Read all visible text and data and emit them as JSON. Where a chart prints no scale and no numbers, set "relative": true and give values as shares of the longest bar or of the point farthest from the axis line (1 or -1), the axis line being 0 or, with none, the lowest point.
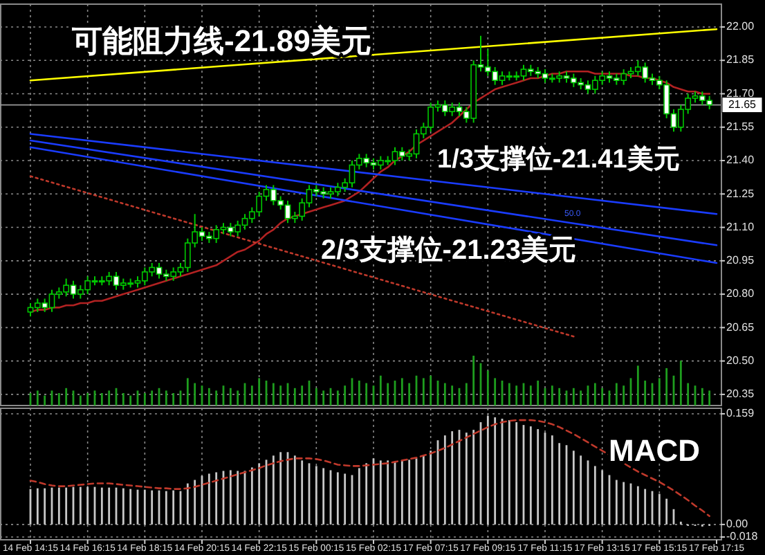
{
  "chart_data": [
    {
      "type": "candlestick",
      "color": "#00c800",
      "tick_labels": "y",
      "grid": true,
      "ohlc": [
        [
          20.72,
          20.76,
          20.7,
          20.74
        ],
        [
          20.74,
          20.78,
          20.72,
          20.76
        ],
        [
          20.76,
          20.78,
          20.72,
          20.74
        ],
        [
          20.74,
          20.82,
          20.72,
          20.8
        ],
        [
          20.8,
          20.83,
          20.78,
          20.81
        ],
        [
          20.81,
          20.87,
          20.79,
          20.84
        ],
        [
          20.84,
          20.86,
          20.78,
          20.8
        ],
        [
          20.8,
          20.84,
          20.78,
          20.82
        ],
        [
          20.82,
          20.88,
          20.8,
          20.86
        ],
        [
          20.86,
          20.88,
          20.84,
          20.86
        ],
        [
          20.86,
          20.88,
          20.84,
          20.86
        ],
        [
          20.86,
          20.9,
          20.84,
          20.88
        ],
        [
          20.88,
          20.9,
          20.82,
          20.84
        ],
        [
          20.84,
          20.87,
          20.82,
          20.85
        ],
        [
          20.85,
          20.87,
          20.83,
          20.85
        ],
        [
          20.85,
          20.88,
          20.83,
          20.86
        ],
        [
          20.86,
          20.92,
          20.84,
          20.9
        ],
        [
          20.9,
          20.94,
          20.88,
          20.92
        ],
        [
          20.92,
          20.94,
          20.87,
          20.89
        ],
        [
          20.89,
          20.91,
          20.86,
          20.88
        ],
        [
          20.88,
          20.92,
          20.86,
          20.9
        ],
        [
          20.9,
          20.94,
          20.88,
          20.92
        ],
        [
          20.92,
          21.05,
          20.9,
          21.03
        ],
        [
          21.03,
          21.16,
          21.01,
          21.08
        ],
        [
          21.08,
          21.1,
          21.04,
          21.06
        ],
        [
          21.06,
          21.08,
          21.03,
          21.05
        ],
        [
          21.05,
          21.11,
          21.03,
          21.09
        ],
        [
          21.09,
          21.12,
          21.07,
          21.1
        ],
        [
          21.1,
          21.12,
          21.06,
          21.08
        ],
        [
          21.08,
          21.13,
          21.06,
          21.11
        ],
        [
          21.11,
          21.16,
          21.09,
          21.14
        ],
        [
          21.14,
          21.19,
          21.12,
          21.17
        ],
        [
          21.17,
          21.26,
          21.15,
          21.24
        ],
        [
          21.24,
          21.29,
          21.22,
          21.27
        ],
        [
          21.27,
          21.29,
          21.2,
          21.22
        ],
        [
          21.22,
          21.24,
          21.18,
          21.2
        ],
        [
          21.2,
          21.22,
          21.12,
          21.14
        ],
        [
          21.14,
          21.17,
          21.12,
          21.15
        ],
        [
          21.15,
          21.23,
          21.13,
          21.21
        ],
        [
          21.21,
          21.29,
          21.19,
          21.27
        ],
        [
          21.27,
          21.29,
          21.24,
          21.26
        ],
        [
          21.26,
          21.28,
          21.23,
          21.25
        ],
        [
          21.25,
          21.28,
          21.23,
          21.26
        ],
        [
          21.26,
          21.3,
          21.24,
          21.28
        ],
        [
          21.28,
          21.32,
          21.26,
          21.3
        ],
        [
          21.3,
          21.4,
          21.28,
          21.38
        ],
        [
          21.38,
          21.43,
          21.36,
          21.41
        ],
        [
          21.41,
          21.43,
          21.37,
          21.39
        ],
        [
          21.39,
          21.41,
          21.36,
          21.38
        ],
        [
          21.38,
          21.42,
          21.36,
          21.4
        ],
        [
          21.4,
          21.42,
          21.38,
          21.4
        ],
        [
          21.4,
          21.46,
          21.38,
          21.44
        ],
        [
          21.44,
          21.46,
          21.4,
          21.42
        ],
        [
          21.42,
          21.45,
          21.4,
          21.43
        ],
        [
          21.43,
          21.54,
          21.41,
          21.52
        ],
        [
          21.52,
          21.57,
          21.5,
          21.55
        ],
        [
          21.55,
          21.66,
          21.53,
          21.64
        ],
        [
          21.64,
          21.67,
          21.62,
          21.65
        ],
        [
          21.65,
          21.67,
          21.6,
          21.62
        ],
        [
          21.62,
          21.66,
          21.6,
          21.64
        ],
        [
          21.64,
          21.66,
          21.6,
          21.62
        ],
        [
          21.62,
          21.64,
          21.57,
          21.59
        ],
        [
          21.59,
          21.85,
          21.57,
          21.83
        ],
        [
          21.83,
          21.96,
          21.8,
          21.82
        ],
        [
          21.82,
          21.9,
          21.78,
          21.8
        ],
        [
          21.8,
          21.82,
          21.74,
          21.76
        ],
        [
          21.76,
          21.8,
          21.74,
          21.78
        ],
        [
          21.78,
          21.8,
          21.76,
          21.78
        ],
        [
          21.78,
          21.8,
          21.76,
          21.78
        ],
        [
          21.78,
          21.83,
          21.76,
          21.81
        ],
        [
          21.81,
          21.83,
          21.78,
          21.8
        ],
        [
          21.8,
          21.82,
          21.77,
          21.79
        ],
        [
          21.79,
          21.81,
          21.75,
          21.77
        ],
        [
          21.77,
          21.79,
          21.75,
          21.77
        ],
        [
          21.77,
          21.8,
          21.75,
          21.78
        ],
        [
          21.78,
          21.8,
          21.75,
          21.77
        ],
        [
          21.77,
          21.79,
          21.73,
          21.75
        ],
        [
          21.75,
          21.77,
          21.72,
          21.74
        ],
        [
          21.74,
          21.76,
          21.7,
          21.72
        ],
        [
          21.72,
          21.78,
          21.7,
          21.76
        ],
        [
          21.76,
          21.8,
          21.74,
          21.78
        ],
        [
          21.78,
          21.8,
          21.75,
          21.77
        ],
        [
          21.77,
          21.79,
          21.74,
          21.76
        ],
        [
          21.76,
          21.81,
          21.74,
          21.79
        ],
        [
          21.79,
          21.82,
          21.77,
          21.8
        ],
        [
          21.8,
          21.85,
          21.78,
          21.82
        ],
        [
          21.82,
          21.84,
          21.75,
          21.77
        ],
        [
          21.77,
          21.79,
          21.74,
          21.76
        ],
        [
          21.76,
          21.78,
          21.72,
          21.74
        ],
        [
          21.74,
          21.76,
          21.59,
          21.61
        ],
        [
          21.61,
          21.63,
          21.53,
          21.55
        ],
        [
          21.55,
          21.65,
          21.53,
          21.63
        ],
        [
          21.63,
          21.7,
          21.61,
          21.68
        ],
        [
          21.68,
          21.71,
          21.66,
          21.69
        ],
        [
          21.69,
          21.71,
          21.65,
          21.67
        ],
        [
          21.67,
          21.69,
          21.63,
          21.65
        ],
        null
      ],
      "series": [
        {
          "type": "line",
          "color": "#b22222",
          "values": [
            20.72,
            20.73,
            20.73,
            20.74,
            20.74,
            20.75,
            20.75,
            20.76,
            20.76,
            20.77,
            20.77,
            20.78,
            20.79,
            20.8,
            20.81,
            20.82,
            20.83,
            20.84,
            20.85,
            20.86,
            20.87,
            20.88,
            20.89,
            20.9,
            20.91,
            20.92,
            20.93,
            20.95,
            20.97,
            20.99,
            21.0,
            21.02,
            21.04,
            21.07,
            21.09,
            21.12,
            21.14,
            21.15,
            21.16,
            21.17,
            21.18,
            21.19,
            21.2,
            21.21,
            21.22,
            21.24,
            21.26,
            21.29,
            21.32,
            21.35,
            21.37,
            21.4,
            21.42,
            21.44,
            21.47,
            21.49,
            21.51,
            21.53,
            21.55,
            21.57,
            21.6,
            21.63,
            21.66,
            21.68,
            21.7,
            21.72,
            21.73,
            21.74,
            21.75,
            21.76,
            21.77,
            21.77,
            21.78,
            21.79,
            21.79,
            21.8,
            21.8,
            21.8,
            21.8,
            21.79,
            21.79,
            21.79,
            21.79,
            21.79,
            21.78,
            21.78,
            21.77,
            21.77,
            21.76,
            21.75,
            21.73,
            21.72,
            21.71,
            21.71,
            21.7,
            21.7,
            null
          ]
        },
        {
          "type": "line",
          "color": "#ffff00",
          "values": [
            21.76,
            null,
            null,
            null,
            null,
            null,
            null,
            null,
            null,
            null,
            null,
            null,
            null,
            null,
            null,
            null,
            null,
            null,
            null,
            null,
            null,
            null,
            null,
            null,
            null,
            null,
            null,
            null,
            null,
            null,
            null,
            null,
            null,
            null,
            null,
            null,
            null,
            null,
            null,
            null,
            null,
            null,
            null,
            null,
            null,
            null,
            null,
            null,
            null,
            null,
            null,
            null,
            null,
            null,
            null,
            null,
            null,
            null,
            null,
            null,
            null,
            null,
            null,
            null,
            null,
            null,
            null,
            null,
            null,
            null,
            null,
            null,
            null,
            null,
            null,
            null,
            null,
            null,
            null,
            null,
            null,
            null,
            null,
            null,
            null,
            null,
            null,
            null,
            null,
            null,
            null,
            null,
            null,
            null,
            null,
            null,
            21.99
          ]
        },
        {
          "type": "line",
          "color": "#1a3cff",
          "values": [
            21.52,
            null,
            null,
            null,
            null,
            null,
            null,
            null,
            null,
            null,
            null,
            null,
            null,
            null,
            null,
            null,
            null,
            null,
            null,
            null,
            null,
            null,
            null,
            null,
            null,
            null,
            null,
            null,
            null,
            null,
            null,
            null,
            null,
            null,
            null,
            null,
            null,
            null,
            null,
            null,
            null,
            null,
            null,
            null,
            null,
            null,
            null,
            null,
            null,
            null,
            null,
            null,
            null,
            null,
            null,
            null,
            null,
            null,
            null,
            null,
            null,
            null,
            null,
            null,
            null,
            null,
            null,
            null,
            null,
            null,
            null,
            null,
            null,
            null,
            null,
            null,
            null,
            null,
            null,
            null,
            null,
            null,
            null,
            null,
            null,
            null,
            null,
            null,
            null,
            null,
            null,
            null,
            null,
            null,
            null,
            null,
            21.16
          ]
        },
        {
          "type": "line",
          "color": "#1a3cff",
          "values": [
            21.49,
            null,
            null,
            null,
            null,
            null,
            null,
            null,
            null,
            null,
            null,
            null,
            null,
            null,
            null,
            null,
            null,
            null,
            null,
            null,
            null,
            null,
            null,
            null,
            null,
            null,
            null,
            null,
            null,
            null,
            null,
            null,
            null,
            null,
            null,
            null,
            null,
            null,
            null,
            null,
            null,
            null,
            null,
            null,
            null,
            null,
            null,
            null,
            null,
            null,
            null,
            null,
            null,
            null,
            null,
            null,
            null,
            null,
            null,
            null,
            null,
            null,
            null,
            null,
            null,
            null,
            null,
            null,
            null,
            null,
            null,
            null,
            null,
            null,
            null,
            null,
            null,
            null,
            null,
            null,
            null,
            null,
            null,
            null,
            null,
            null,
            null,
            null,
            null,
            null,
            null,
            null,
            null,
            null,
            null,
            null,
            21.02
          ]
        },
        {
          "type": "line",
          "color": "#1a3cff",
          "values": [
            21.46,
            null,
            null,
            null,
            null,
            null,
            null,
            null,
            null,
            null,
            null,
            null,
            null,
            null,
            null,
            null,
            null,
            null,
            null,
            null,
            null,
            null,
            null,
            null,
            null,
            null,
            null,
            null,
            null,
            null,
            null,
            null,
            null,
            null,
            null,
            null,
            null,
            null,
            null,
            null,
            null,
            null,
            null,
            null,
            null,
            null,
            null,
            null,
            null,
            null,
            null,
            null,
            null,
            null,
            null,
            null,
            null,
            null,
            null,
            null,
            null,
            null,
            null,
            null,
            null,
            null,
            null,
            null,
            null,
            null,
            null,
            null,
            null,
            null,
            null,
            null,
            null,
            null,
            null,
            null,
            null,
            null,
            null,
            null,
            null,
            null,
            null,
            null,
            null,
            null,
            null,
            null,
            null,
            null,
            null,
            null,
            20.94
          ]
        },
        {
          "type": "line",
          "color": "#c0392b",
          "line_style": "dotted",
          "values": [
            21.33,
            null,
            null,
            null,
            null,
            null,
            null,
            null,
            null,
            null,
            null,
            null,
            null,
            null,
            null,
            null,
            null,
            null,
            null,
            null,
            null,
            null,
            null,
            null,
            null,
            null,
            null,
            null,
            null,
            null,
            null,
            null,
            null,
            null,
            null,
            null,
            null,
            null,
            null,
            null,
            null,
            null,
            null,
            null,
            null,
            null,
            null,
            null,
            null,
            null,
            null,
            null,
            null,
            null,
            null,
            null,
            null,
            null,
            null,
            null,
            null,
            null,
            null,
            null,
            null,
            null,
            null,
            null,
            null,
            null,
            null,
            null,
            null,
            null,
            null,
            null,
            20.61,
            null,
            null,
            null,
            null,
            null,
            null,
            null,
            null,
            null,
            null,
            null,
            null,
            null,
            null,
            null,
            null,
            null,
            null,
            null,
            null
          ]
        }
      ],
      "ylim": [
        20.3,
        22.09
      ],
      "yticks": [
        {
          "value": 20.35,
          "label": "20.35"
        },
        {
          "value": 20.5,
          "label": "20.50"
        },
        {
          "value": 20.65,
          "label": "20.65"
        },
        {
          "value": 20.8,
          "label": "20.80"
        },
        {
          "value": 20.95,
          "label": "20.95"
        },
        {
          "value": 21.1,
          "label": "21.10"
        },
        {
          "value": 21.25,
          "label": "21.25"
        },
        {
          "value": 21.4,
          "label": "21.40"
        },
        {
          "value": 21.55,
          "label": "21.55"
        },
        {
          "value": 21.7,
          "label": "21.70"
        },
        {
          "value": 21.85,
          "label": "21.85"
        },
        {
          "value": 22.0,
          "label": "22.00"
        }
      ],
      "ref_lines": [
        {
          "axis": "y",
          "value": 21.65,
          "label": "21.65",
          "color": "#9a9a9a"
        }
      ],
      "annotations": [
        "可能阻力线-21.89美元",
        "1/3支撑位-21.41美元",
        "2/3支撑位-21.23美元",
        "50.0"
      ]
    },
    {
      "type": "bar",
      "relative": true,
      "tick_labels": false,
      "color": "#1e9e1e",
      "values": [
        0.25,
        0.3,
        0.2,
        0.3,
        0.25,
        0.35,
        0.3,
        0.2,
        0.25,
        0.3,
        0.25,
        0.3,
        0.35,
        0.25,
        0.2,
        0.3,
        0.25,
        0.3,
        0.35,
        0.3,
        0.25,
        0.3,
        0.55,
        0.45,
        0.4,
        0.35,
        0.3,
        0.4,
        0.35,
        0.3,
        0.45,
        0.4,
        0.55,
        0.5,
        0.45,
        0.4,
        0.45,
        0.35,
        0.4,
        0.5,
        0.35,
        0.3,
        0.35,
        0.3,
        0.4,
        0.55,
        0.5,
        0.45,
        0.4,
        0.6,
        0.45,
        0.5,
        0.55,
        0.45,
        0.6,
        0.55,
        0.6,
        0.5,
        0.45,
        0.4,
        0.35,
        0.45,
        1.0,
        0.85,
        0.7,
        0.55,
        0.5,
        0.45,
        0.4,
        0.45,
        0.4,
        0.5,
        0.35,
        0.4,
        0.35,
        0.3,
        0.35,
        0.3,
        0.4,
        0.45,
        0.35,
        0.3,
        0.45,
        0.4,
        0.55,
        0.8,
        0.5,
        0.45,
        0.55,
        0.75,
        0.6,
        0.9,
        0.45,
        0.4,
        0.35,
        0.3,
        null
      ]
    },
    {
      "type": "bar",
      "grid": true,
      "categories": [
        "14 Feb 14:15",
        null,
        null,
        null,
        null,
        null,
        null,
        null,
        "14 Feb 16:15",
        null,
        null,
        null,
        null,
        null,
        null,
        null,
        "14 Feb 18:15",
        null,
        null,
        null,
        null,
        null,
        null,
        null,
        "14 Feb 20:15",
        null,
        null,
        null,
        null,
        null,
        null,
        null,
        "14 Feb 22:15",
        null,
        null,
        null,
        null,
        null,
        null,
        null,
        "15 Feb 00:15",
        null,
        null,
        null,
        null,
        null,
        null,
        null,
        "15 Feb 02:15",
        null,
        null,
        null,
        null,
        null,
        null,
        null,
        "17 Feb 07:15",
        null,
        null,
        null,
        null,
        null,
        null,
        null,
        "17 Feb 09:15",
        null,
        null,
        null,
        null,
        null,
        null,
        null,
        "17 Feb 11:15",
        null,
        null,
        null,
        null,
        null,
        null,
        null,
        "17 Feb 13:15",
        null,
        null,
        null,
        null,
        null,
        null,
        null,
        "17 Feb 15:15",
        null,
        null,
        null,
        null,
        null,
        null,
        null,
        "17 Feb 17:15"
      ],
      "series": [
        {
          "color": "#c8c8c8",
          "values": [
            0.051,
            0.052,
            0.052,
            0.053,
            0.053,
            0.053,
            0.054,
            0.054,
            0.054,
            0.054,
            0.053,
            0.053,
            0.053,
            0.052,
            0.051,
            0.05,
            0.05,
            0.049,
            0.049,
            0.048,
            0.049,
            0.048,
            0.059,
            0.064,
            0.07,
            0.073,
            0.075,
            0.077,
            0.078,
            0.077,
            0.077,
            0.082,
            0.088,
            0.093,
            0.099,
            0.104,
            0.104,
            0.099,
            0.092,
            0.088,
            0.084,
            0.081,
            0.078,
            0.075,
            0.073,
            0.071,
            0.081,
            0.088,
            0.095,
            0.092,
            0.092,
            0.09,
            0.092,
            0.093,
            0.095,
            0.099,
            0.106,
            0.121,
            0.128,
            0.134,
            0.136,
            0.132,
            0.136,
            0.147,
            0.156,
            0.154,
            0.152,
            0.15,
            0.147,
            0.143,
            0.141,
            0.137,
            0.132,
            0.128,
            0.117,
            0.114,
            0.106,
            0.099,
            0.092,
            0.084,
            0.078,
            0.071,
            0.064,
            0.061,
            0.059,
            0.055,
            0.051,
            0.048,
            0.044,
            0.037,
            0.022,
            0.004,
            -0.002,
            -0.002,
            -0.003,
            -0.002,
            null
          ]
        },
        {
          "type": "line",
          "color": "#c0392b",
          "line_style": "dashed",
          "values": [
            0.063,
            0.061,
            0.058,
            0.056,
            0.055,
            0.055,
            0.056,
            0.057,
            0.058,
            0.059,
            0.059,
            0.059,
            0.058,
            0.057,
            0.056,
            0.055,
            0.054,
            0.053,
            0.052,
            0.052,
            0.051,
            0.051,
            0.052,
            0.054,
            0.057,
            0.06,
            0.063,
            0.066,
            0.069,
            0.072,
            0.075,
            0.078,
            0.081,
            0.085,
            0.088,
            0.091,
            0.093,
            0.095,
            0.095,
            0.095,
            0.094,
            0.092,
            0.089,
            0.086,
            0.085,
            0.084,
            0.084,
            0.085,
            0.086,
            0.087,
            0.088,
            0.09,
            0.092,
            0.094,
            0.096,
            0.099,
            0.102,
            0.106,
            0.11,
            0.115,
            0.12,
            0.125,
            0.13,
            0.135,
            0.14,
            0.144,
            0.147,
            0.149,
            0.15,
            0.15,
            0.15,
            0.149,
            0.147,
            0.144,
            0.14,
            0.135,
            0.13,
            0.124,
            0.118,
            0.112,
            0.106,
            0.1,
            0.094,
            0.088,
            0.082,
            0.076,
            0.071,
            0.066,
            0.061,
            0.055,
            0.049,
            0.042,
            0.035,
            0.027,
            0.02,
            0.012,
            null
          ]
        }
      ],
      "ylim": [
        -0.022,
        0.163
      ],
      "yticks": [
        {
          "value": -0.018,
          "label": "-0.018"
        },
        {
          "value": 0,
          "label": "0.00"
        },
        {
          "value": 0.159,
          "label": "0.159"
        }
      ],
      "annotations": [
        "MACD"
      ]
    }
  ]
}
